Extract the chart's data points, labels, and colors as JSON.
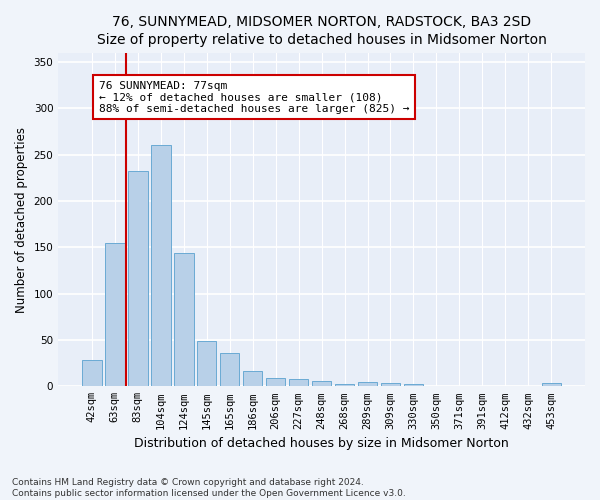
{
  "title": "76, SUNNYMEAD, MIDSOMER NORTON, RADSTOCK, BA3 2SD",
  "subtitle": "Size of property relative to detached houses in Midsomer Norton",
  "xlabel": "Distribution of detached houses by size in Midsomer Norton",
  "ylabel": "Number of detached properties",
  "footer_line1": "Contains HM Land Registry data © Crown copyright and database right 2024.",
  "footer_line2": "Contains public sector information licensed under the Open Government Licence v3.0.",
  "categories": [
    "42sqm",
    "63sqm",
    "83sqm",
    "104sqm",
    "124sqm",
    "145sqm",
    "165sqm",
    "186sqm",
    "206sqm",
    "227sqm",
    "248sqm",
    "268sqm",
    "289sqm",
    "309sqm",
    "330sqm",
    "350sqm",
    "371sqm",
    "391sqm",
    "412sqm",
    "432sqm",
    "453sqm"
  ],
  "values": [
    28,
    155,
    232,
    260,
    144,
    49,
    36,
    16,
    9,
    8,
    6,
    3,
    5,
    4,
    2,
    0,
    0,
    0,
    0,
    0,
    4
  ],
  "bar_color": "#b8d0e8",
  "bar_edge_color": "#6aaad4",
  "vline_x_index": 1.5,
  "vline_color": "#cc0000",
  "annotation_text": "76 SUNNYMEAD: 77sqm\n← 12% of detached houses are smaller (108)\n88% of semi-detached houses are larger (825) →",
  "annotation_box_color": "#ffffff",
  "annotation_box_edge_color": "#cc0000",
  "ylim": [
    0,
    360
  ],
  "yticks": [
    0,
    50,
    100,
    150,
    200,
    250,
    300,
    350
  ],
  "background_color": "#f0f4fa",
  "plot_background_color": "#e8eef8",
  "grid_color": "#ffffff",
  "title_fontsize": 10,
  "subtitle_fontsize": 9,
  "xlabel_fontsize": 9,
  "ylabel_fontsize": 8.5,
  "tick_fontsize": 7.5,
  "annotation_fontsize": 8,
  "footer_fontsize": 6.5
}
